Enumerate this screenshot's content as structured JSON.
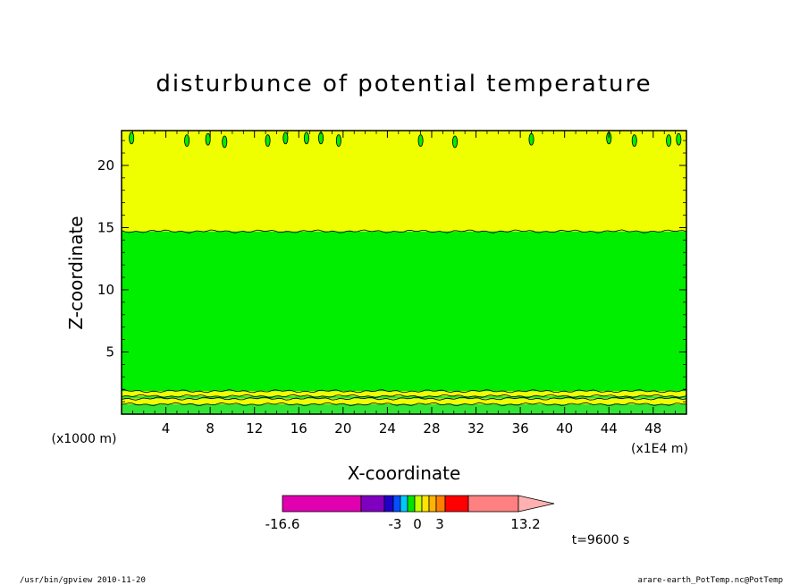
{
  "chart_data": {
    "type": "heatmap",
    "title": "disturbunce of potential temperature",
    "xlabel": "X-coordinate",
    "ylabel": "Z-coordinate",
    "x_unit": "(x1E4 m)",
    "y_unit": "(x1000 m)",
    "xlim": [
      0,
      51
    ],
    "ylim": [
      0,
      22.8
    ],
    "x_ticks": [
      4,
      8,
      12,
      16,
      20,
      24,
      28,
      32,
      36,
      40,
      44,
      48
    ],
    "y_ticks": [
      5,
      10,
      15,
      20
    ],
    "bands": [
      {
        "z_bottom": 0.0,
        "z_top": 0.8,
        "color": "#33e633"
      },
      {
        "z_bottom": 0.8,
        "z_top": 1.25,
        "color": "#f0ff00"
      },
      {
        "z_bottom": 1.25,
        "z_top": 1.45,
        "color": "#33e633"
      },
      {
        "z_bottom": 1.45,
        "z_top": 1.85,
        "color": "#f0ff00"
      },
      {
        "z_bottom": 1.85,
        "z_top": 14.7,
        "color": "#00ee00"
      },
      {
        "z_bottom": 14.7,
        "z_top": 22.8,
        "color": "#f0ff00"
      }
    ],
    "blobs": [
      {
        "x": 0.9,
        "z": 22.2
      },
      {
        "x": 5.9,
        "z": 22.0
      },
      {
        "x": 7.8,
        "z": 22.1
      },
      {
        "x": 9.3,
        "z": 21.9
      },
      {
        "x": 13.2,
        "z": 22.0
      },
      {
        "x": 14.8,
        "z": 22.2
      },
      {
        "x": 16.7,
        "z": 22.2
      },
      {
        "x": 18.0,
        "z": 22.2
      },
      {
        "x": 19.6,
        "z": 22.0
      },
      {
        "x": 27.0,
        "z": 22.0
      },
      {
        "x": 30.1,
        "z": 21.9
      },
      {
        "x": 37.0,
        "z": 22.1
      },
      {
        "x": 44.0,
        "z": 22.2
      },
      {
        "x": 46.3,
        "z": 22.0
      },
      {
        "x": 49.4,
        "z": 22.0
      },
      {
        "x": 50.3,
        "z": 22.1
      }
    ],
    "colorbar": {
      "segments": [
        {
          "value": -16.6,
          "color": "#e000b0"
        },
        {
          "value": -10,
          "color": "#8000c0"
        },
        {
          "value": -6,
          "color": "#2000c8"
        },
        {
          "value": -4.5,
          "color": "#0050ff"
        },
        {
          "value": -3,
          "color": "#00c8ff"
        },
        {
          "value": -1.5,
          "color": "#00e600"
        },
        {
          "value": 0,
          "color": "#c8ff00"
        },
        {
          "value": 1,
          "color": "#ffe600"
        },
        {
          "value": 2,
          "color": "#ffb400"
        },
        {
          "value": 3,
          "color": "#ff8000"
        },
        {
          "value": 4.5,
          "color": "#ff0000"
        },
        {
          "value": 8,
          "color": "#ff8080"
        },
        {
          "value": 13.2,
          "color": "#ffb0b0"
        }
      ],
      "tick_labels": [
        "-16.6",
        "-3",
        "0",
        "3",
        "13.2"
      ]
    }
  },
  "annotations": {
    "time": "t=9600 s",
    "footer_left": "/usr/bin/gpview   2010-11-20",
    "footer_right": "arare-earth_PotTemp.nc@PotTemp"
  }
}
